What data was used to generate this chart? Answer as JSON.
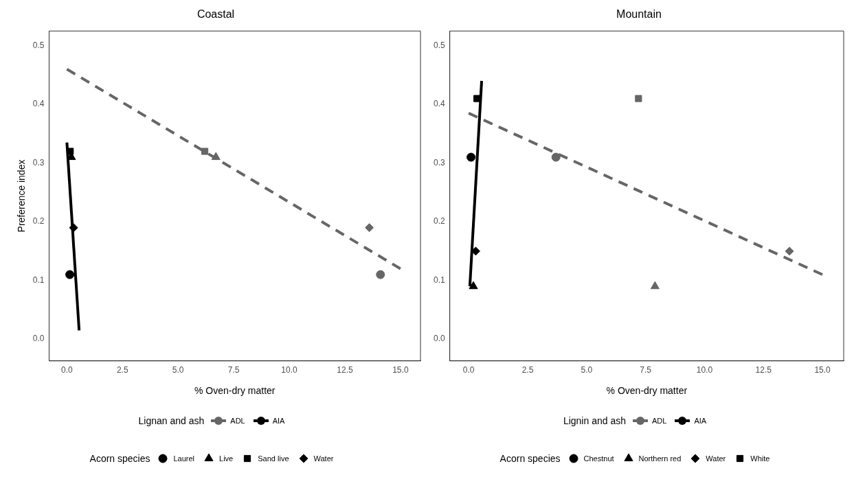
{
  "chart_data": [
    {
      "type": "scatter",
      "title": "Coastal",
      "xlabel": "% Oven-dry matter",
      "ylabel": "Preference index",
      "legend_title": [
        "Lignan and ash",
        "Acorn species"
      ],
      "xlim": [
        -0.8,
        15.9
      ],
      "ylim": [
        -0.037,
        0.525
      ],
      "xticks": [
        {
          "value": 0,
          "label": "0.0"
        },
        2.5,
        {
          "value": 5,
          "label": "5.0"
        },
        7.5,
        {
          "value": 10,
          "label": "10.0"
        },
        12.5,
        {
          "value": 15,
          "label": "15.0"
        }
      ],
      "yticks": [
        {
          "value": 0,
          "label": "0.0"
        },
        0.1,
        0.2,
        0.3,
        0.4,
        0.5
      ],
      "grid": false,
      "legend": "bottom",
      "series": [
        {
          "name": "ADL",
          "type": "line",
          "color": "#666666",
          "line_style": "dashed",
          "x": [
            0,
            15
          ],
          "values": [
            0.46,
            0.12
          ]
        },
        {
          "name": "AIA",
          "type": "line",
          "color": "#000000",
          "line_style": "solid",
          "x": [
            0,
            0.55
          ],
          "values": [
            0.335,
            0.015
          ]
        },
        {
          "name": "Laurel",
          "marker": "circle",
          "colors": [
            "#000000",
            "#666666"
          ],
          "x": [
            0.13,
            14.1
          ],
          "values": [
            0.11,
            0.11
          ]
        },
        {
          "name": "Live",
          "marker": "triangle",
          "colors": [
            "#000000",
            "#666666"
          ],
          "x": [
            0.2,
            6.7
          ],
          "values": [
            0.31,
            0.31
          ]
        },
        {
          "name": "Sand live",
          "marker": "square",
          "colors": [
            "#000000",
            "#666666"
          ],
          "x": [
            0.15,
            6.2
          ],
          "values": [
            0.32,
            0.32
          ]
        },
        {
          "name": "Water",
          "marker": "diamond",
          "colors": [
            "#000000",
            "#666666"
          ],
          "x": [
            0.3,
            13.6
          ],
          "values": [
            0.19,
            0.19
          ]
        }
      ]
    },
    {
      "type": "scatter",
      "title": "Mountain",
      "xlabel": "% Oven-dry matter",
      "legend_title": [
        "Lignin and ash",
        "Acorn species"
      ],
      "xlim": [
        -0.8,
        15.9
      ],
      "ylim": [
        -0.037,
        0.525
      ],
      "xticks": [
        {
          "value": 0,
          "label": "0.0"
        },
        2.5,
        {
          "value": 5,
          "label": "5.0"
        },
        7.5,
        {
          "value": 10,
          "label": "10.0"
        },
        12.5,
        {
          "value": 15,
          "label": "15.0"
        }
      ],
      "yticks": [
        {
          "value": 0,
          "label": "0.0"
        },
        0.1,
        0.2,
        0.3,
        0.4,
        0.5
      ],
      "grid": false,
      "legend": "bottom",
      "series": [
        {
          "name": "ADL",
          "type": "line",
          "color": "#666666",
          "line_style": "dashed",
          "x": [
            0,
            15
          ],
          "values": [
            0.385,
            0.11
          ]
        },
        {
          "name": "AIA",
          "type": "line",
          "color": "#000000",
          "line_style": "solid",
          "x": [
            0.05,
            0.55
          ],
          "values": [
            0.09,
            0.44
          ]
        },
        {
          "name": "Chestnut",
          "marker": "circle",
          "colors": [
            "#000000",
            "#666666"
          ],
          "x": [
            0.1,
            3.7
          ],
          "values": [
            0.31,
            0.31
          ]
        },
        {
          "name": "Northern red",
          "marker": "triangle",
          "colors": [
            "#000000",
            "#666666"
          ],
          "x": [
            0.2,
            7.9
          ],
          "values": [
            0.09,
            0.09
          ]
        },
        {
          "name": "Water",
          "marker": "diamond",
          "colors": [
            "#000000",
            "#666666"
          ],
          "x": [
            0.3,
            13.6
          ],
          "values": [
            0.15,
            0.15
          ]
        },
        {
          "name": "White",
          "marker": "square",
          "colors": [
            "#000000",
            "#666666"
          ],
          "x": [
            0.35,
            7.2
          ],
          "values": [
            0.41,
            0.41
          ]
        }
      ]
    }
  ]
}
